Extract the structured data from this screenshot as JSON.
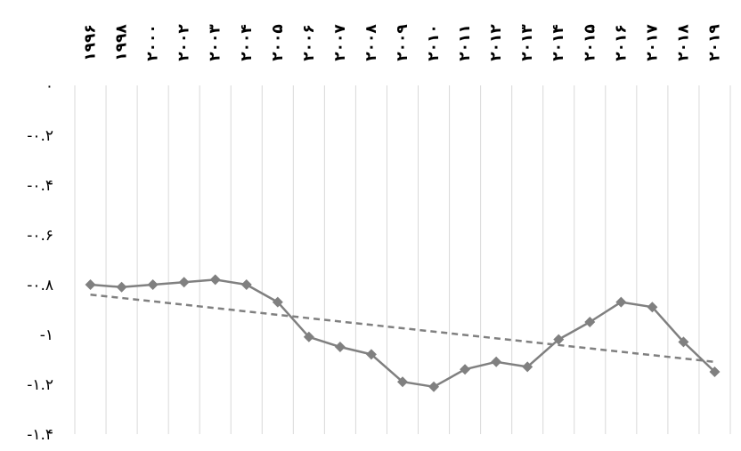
{
  "chart_data": {
    "type": "line",
    "x": [
      "۱۹۹۶",
      "۱۹۹۸",
      "۲۰۰۰",
      "۲۰۰۲",
      "۲۰۰۳",
      "۲۰۰۴",
      "۲۰۰۵",
      "۲۰۰۶",
      "۲۰۰۷",
      "۲۰۰۸",
      "۲۰۰۹",
      "۲۰۱۰",
      "۲۰۱۱",
      "۲۰۱۲",
      "۲۰۱۳",
      "۲۰۱۴",
      "۲۰۱۵",
      "۲۰۱۶",
      "۲۰۱۷",
      "۲۰۱۸",
      "۲۰۱۹"
    ],
    "series": [
      {
        "values": [
          -0.8,
          -0.81,
          -0.8,
          -0.79,
          -0.78,
          -0.8,
          -0.87,
          -1.01,
          -1.05,
          -1.08,
          -1.19,
          -1.21,
          -1.14,
          -1.11,
          -1.13,
          -1.02,
          -0.95,
          -0.87,
          -0.89,
          -1.03,
          -1.15
        ]
      }
    ],
    "trendline": {
      "start": -0.84,
      "end": -1.11
    },
    "y_ticks": [
      "۰",
      "-۰.۲",
      "-۰.۴",
      "-۰.۶",
      "-۰.۸",
      "-۱",
      "-۱.۲",
      "-۱.۴"
    ],
    "y_tick_values": [
      0,
      -0.2,
      -0.4,
      -0.6,
      -0.8,
      -1.0,
      -1.2,
      -1.4
    ],
    "ylim": [
      -1.4,
      0
    ],
    "xaxis_position": "top",
    "grid": "vertical",
    "legend": "none",
    "colors": {
      "line": "#808080",
      "marker": "#808080",
      "trend": "#808080",
      "grid": "#d9d9d9"
    }
  }
}
